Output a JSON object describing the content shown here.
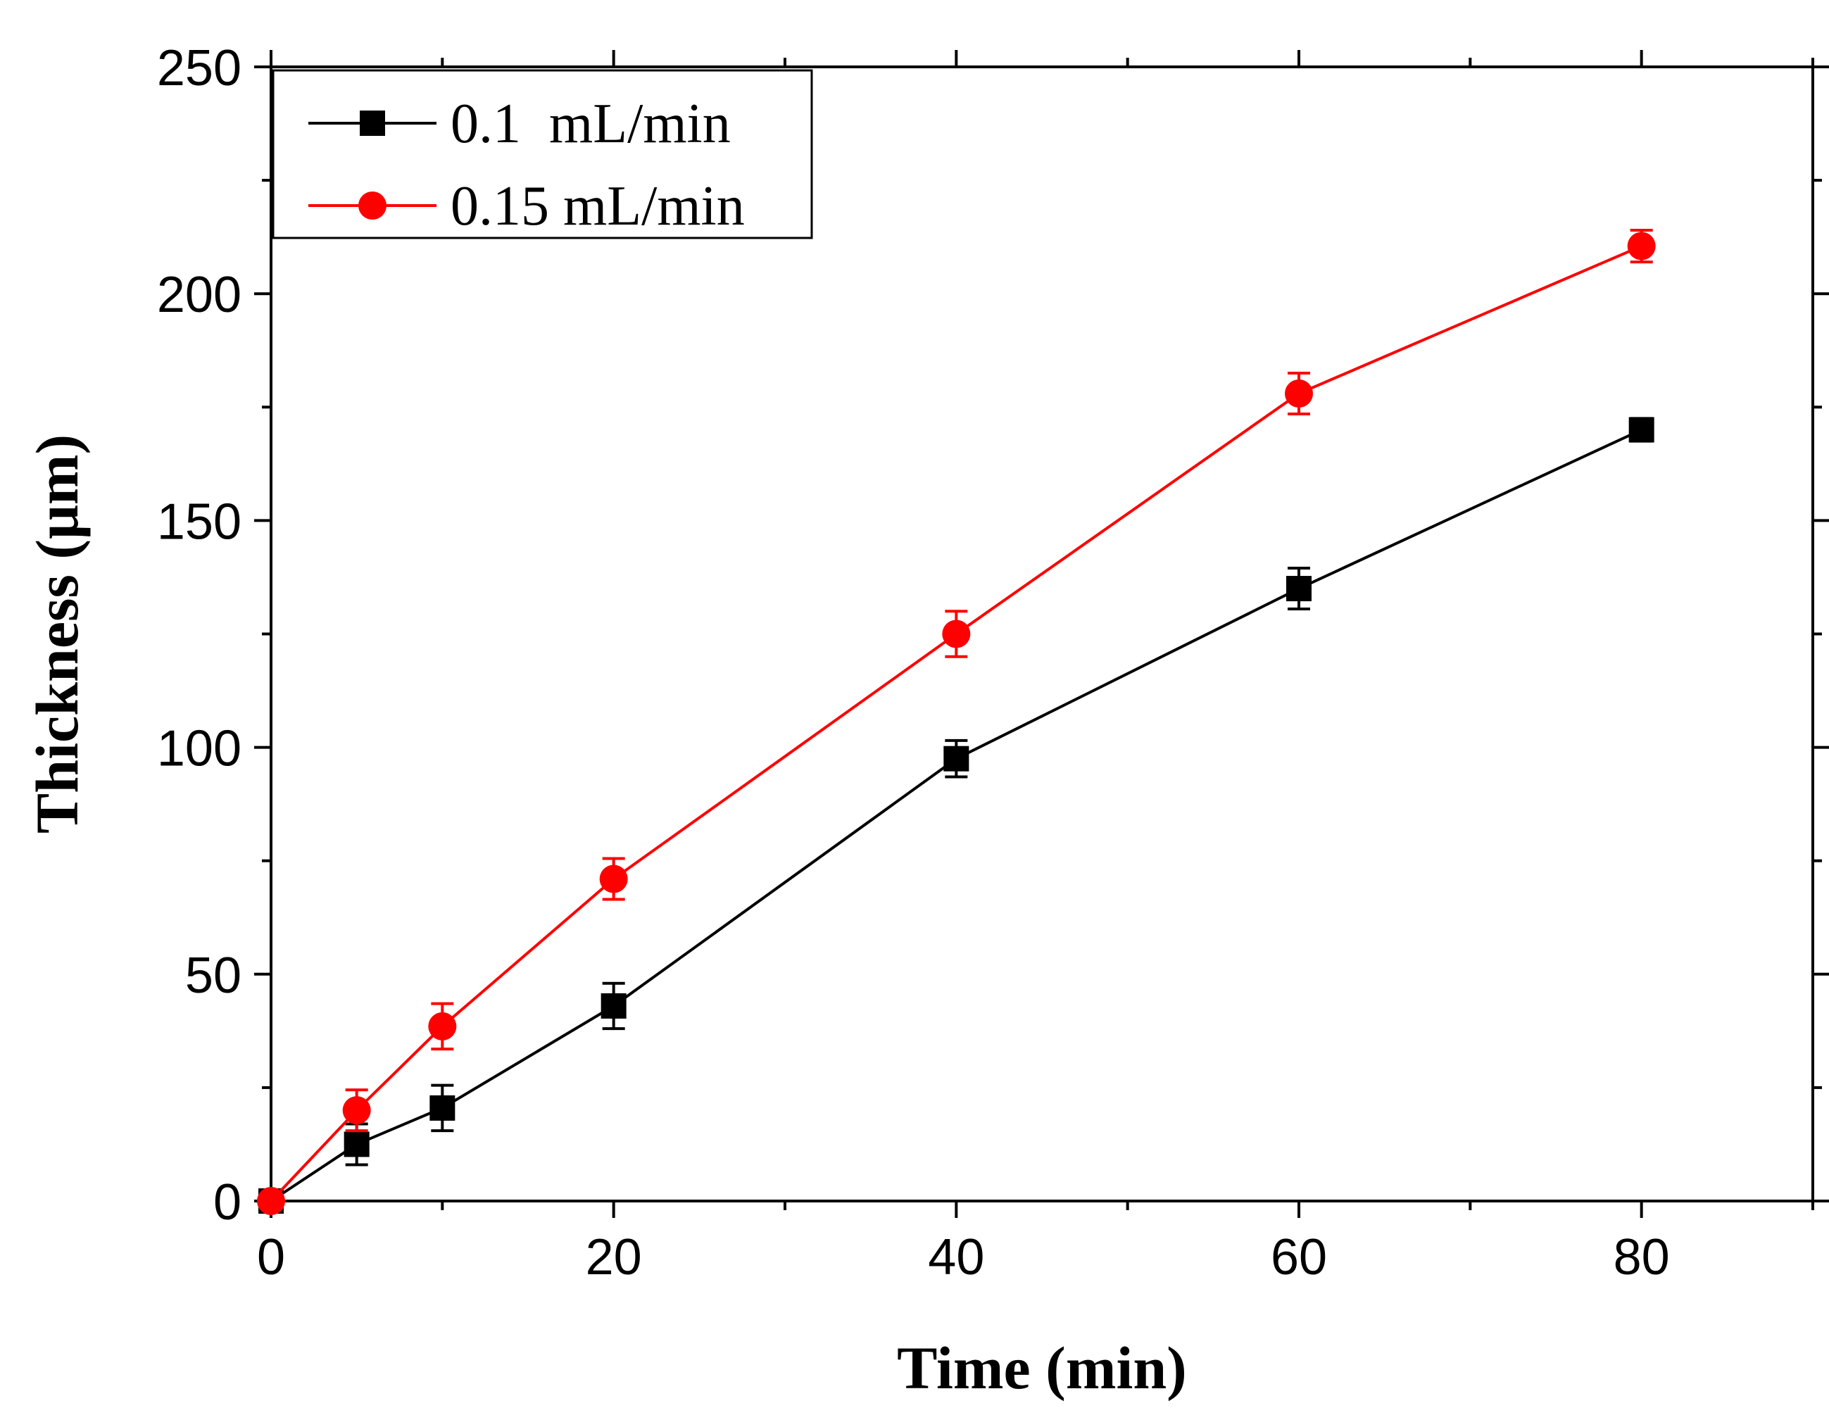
{
  "chart_data": {
    "type": "line",
    "title": "",
    "xlabel": "Time (min)",
    "ylabel": "Thickness (μm)",
    "xlim": [
      0,
      90
    ],
    "ylim": [
      0,
      250
    ],
    "xticks": [
      0,
      20,
      40,
      60,
      80
    ],
    "xminor": [
      10,
      30,
      50,
      70,
      90
    ],
    "yticks": [
      0,
      50,
      100,
      150,
      200,
      250
    ],
    "yminor": [
      25,
      75,
      125,
      175,
      225
    ],
    "legend_position": "top-left",
    "series": [
      {
        "name": "0.1  mL/min",
        "color": "#000000",
        "marker": "square",
        "x": [
          0,
          5,
          10,
          20,
          40,
          60,
          80
        ],
        "y": [
          0,
          12.5,
          20.5,
          43,
          97.5,
          135,
          170
        ],
        "err": [
          0,
          4.5,
          5,
          5,
          4,
          4.5,
          2.5
        ]
      },
      {
        "name": "0.15 mL/min",
        "color": "#ff0000",
        "marker": "circle",
        "x": [
          0,
          5,
          10,
          20,
          40,
          60,
          80
        ],
        "y": [
          0,
          20,
          38.5,
          71,
          125,
          178,
          210.5
        ],
        "err": [
          0,
          4.5,
          5,
          4.5,
          5,
          4.5,
          3.5
        ]
      }
    ]
  }
}
